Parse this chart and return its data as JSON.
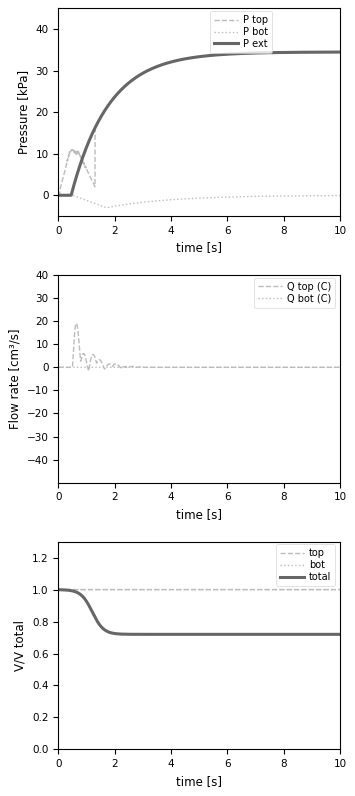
{
  "fig_width": 3.55,
  "fig_height": 7.96,
  "dpi": 100,
  "bg_color": "#ffffff",
  "subplot1": {
    "ylabel": "Pressure [kPa]",
    "xlabel": "time [s]",
    "xlim": [
      0,
      10
    ],
    "ylim": [
      -5,
      45
    ],
    "yticks": [
      0,
      10,
      20,
      30,
      40
    ],
    "xticks": [
      0,
      2,
      4,
      6,
      8,
      10
    ]
  },
  "subplot2": {
    "ylabel": "Flow rate [cm³/s]",
    "xlabel": "time [s]",
    "xlim": [
      0,
      10
    ],
    "ylim": [
      -50,
      40
    ],
    "yticks": [
      -40,
      -30,
      -20,
      -10,
      0,
      10,
      20,
      30,
      40
    ],
    "xticks": [
      0,
      2,
      4,
      6,
      8,
      10
    ]
  },
  "subplot3": {
    "ylabel": "V/V total",
    "xlabel": "time [s]",
    "xlim": [
      0,
      10
    ],
    "ylim": [
      0,
      1.3
    ],
    "yticks": [
      0.0,
      0.2,
      0.4,
      0.6,
      0.8,
      1.0,
      1.2
    ],
    "xticks": [
      0,
      2,
      4,
      6,
      8,
      10
    ]
  },
  "line_color_dark": "#666666",
  "line_color_light": "#bbbbbb",
  "tick_labelsize": 7.5,
  "axis_labelsize": 8.5,
  "legend_fontsize": 7.0
}
